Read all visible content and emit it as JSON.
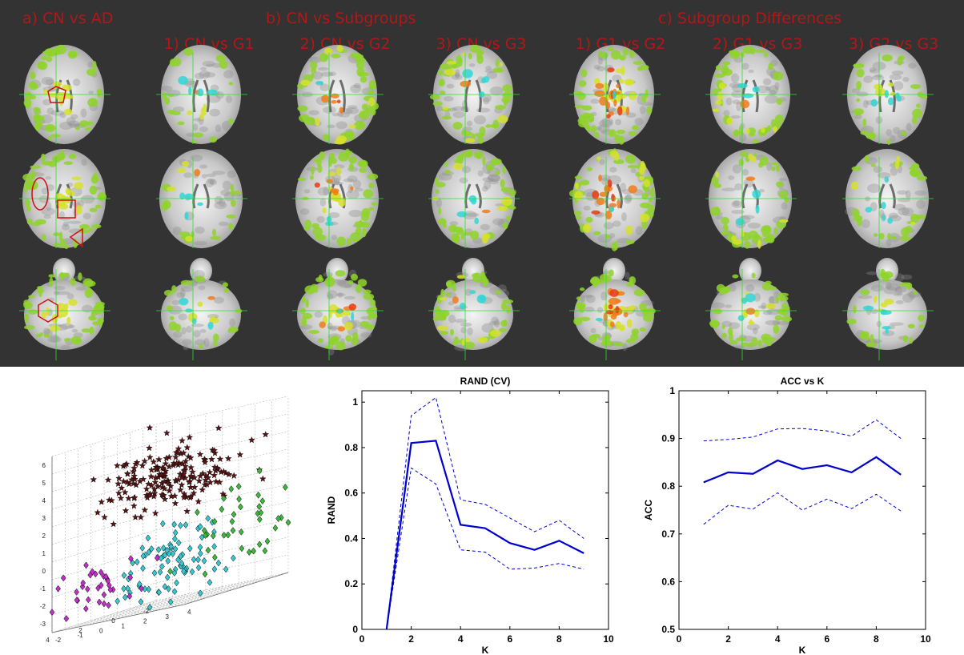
{
  "brain_panel": {
    "section_titles": [
      "a) CN vs AD",
      "b) CN vs Subgroups",
      "c) Subgroup Differences"
    ],
    "column_titles": [
      "1) CN vs G1",
      "2) CN vs G2",
      "3) CN vs G3",
      "1) G1 vs G2",
      "2) G1 vs G3",
      "3) G2 vs G3"
    ],
    "colors": {
      "background": "#333333",
      "title": "#b01818",
      "crosshair": "#33dd33",
      "annotation": "#cc1111"
    },
    "columns": [
      {
        "green": 0.85,
        "yellow": 0.55,
        "red": 0.0,
        "cyan": 0.0
      },
      {
        "green": 0.35,
        "yellow": 0.2,
        "red": 0.05,
        "cyan": 0.35
      },
      {
        "green": 0.9,
        "yellow": 0.5,
        "red": 0.3,
        "cyan": 0.15
      },
      {
        "green": 0.85,
        "yellow": 0.4,
        "red": 0.1,
        "cyan": 0.4
      },
      {
        "green": 0.8,
        "yellow": 0.8,
        "red": 0.75,
        "cyan": 0.1
      },
      {
        "green": 0.8,
        "yellow": 0.45,
        "red": 0.05,
        "cyan": 0.25
      },
      {
        "green": 0.5,
        "yellow": 0.2,
        "red": 0.0,
        "cyan": 0.45
      }
    ]
  },
  "chart_data": [
    {
      "type": "scatter",
      "title": "",
      "projection": "3d",
      "z_ticks": [
        "6",
        "5",
        "4",
        "3",
        "2",
        "1",
        "0",
        "-1",
        "-2",
        "-3"
      ],
      "x_ticks": [
        "4",
        "2",
        "0",
        "-2"
      ],
      "y_ticks": [
        "-2",
        "-1",
        "0",
        "1",
        "2",
        "3",
        "4"
      ],
      "grid": true,
      "series": [
        {
          "marker": "star",
          "color": "#5a1414",
          "count": 190,
          "center": [
            0,
            0,
            3.5
          ],
          "spread": [
            1.6,
            1.6,
            1.0
          ]
        },
        {
          "marker": "diamond",
          "color": "#36c8d0",
          "count": 90,
          "center": [
            0,
            0,
            -1.5
          ],
          "spread": [
            1.2,
            1.2,
            1.0
          ]
        },
        {
          "marker": "diamond",
          "color": "#c030c8",
          "count": 35,
          "center": [
            3,
            -1,
            -1.5
          ],
          "spread": [
            1.0,
            0.8,
            0.9
          ]
        },
        {
          "marker": "diamond",
          "color": "#3cb83c",
          "count": 40,
          "center": [
            -1.5,
            2.5,
            0
          ],
          "spread": [
            0.8,
            1.0,
            1.5
          ]
        }
      ]
    },
    {
      "type": "line",
      "title": "RAND (CV)",
      "xlabel": "K",
      "ylabel": "RAND",
      "x": [
        1,
        2,
        3,
        4,
        5,
        6,
        7,
        8,
        9
      ],
      "xlim": [
        0,
        10
      ],
      "ylim": [
        0,
        1.05
      ],
      "xticks": [
        0,
        2,
        4,
        6,
        8,
        10
      ],
      "yticks": [
        0,
        0.2,
        0.4,
        0.6,
        0.8,
        1
      ],
      "ytick_labels": [
        "0",
        "0.2",
        "0.4",
        "0.6",
        "0.8",
        "1"
      ],
      "series": [
        {
          "style": "solid",
          "values": [
            0.0,
            0.82,
            0.83,
            0.46,
            0.445,
            0.38,
            0.35,
            0.39,
            0.335
          ]
        },
        {
          "style": "dashed",
          "values": [
            0.0,
            0.94,
            1.02,
            0.57,
            0.55,
            0.49,
            0.43,
            0.48,
            0.4
          ]
        },
        {
          "style": "dashed",
          "values": [
            0.0,
            0.71,
            0.64,
            0.35,
            0.34,
            0.265,
            0.27,
            0.29,
            0.265
          ]
        }
      ],
      "color": "#0000cc"
    },
    {
      "type": "line",
      "title": "ACC vs K",
      "xlabel": "K",
      "ylabel": "ACC",
      "x": [
        1,
        2,
        3,
        4,
        5,
        6,
        7,
        8,
        9
      ],
      "xlim": [
        0,
        10
      ],
      "ylim": [
        0.5,
        1.0
      ],
      "xticks": [
        0,
        2,
        4,
        6,
        8,
        10
      ],
      "yticks": [
        0.5,
        0.6,
        0.7,
        0.8,
        0.9,
        1.0
      ],
      "ytick_labels": [
        "0.5",
        "0.6",
        "0.7",
        "0.8",
        "0.9",
        "1"
      ],
      "series": [
        {
          "style": "solid",
          "values": [
            0.808,
            0.829,
            0.826,
            0.854,
            0.836,
            0.844,
            0.829,
            0.861,
            0.824
          ]
        },
        {
          "style": "dashed",
          "values": [
            0.895,
            0.898,
            0.903,
            0.92,
            0.921,
            0.916,
            0.905,
            0.939,
            0.9
          ]
        },
        {
          "style": "dashed",
          "values": [
            0.72,
            0.76,
            0.752,
            0.786,
            0.75,
            0.773,
            0.753,
            0.783,
            0.748
          ]
        }
      ],
      "color": "#0000cc"
    }
  ]
}
